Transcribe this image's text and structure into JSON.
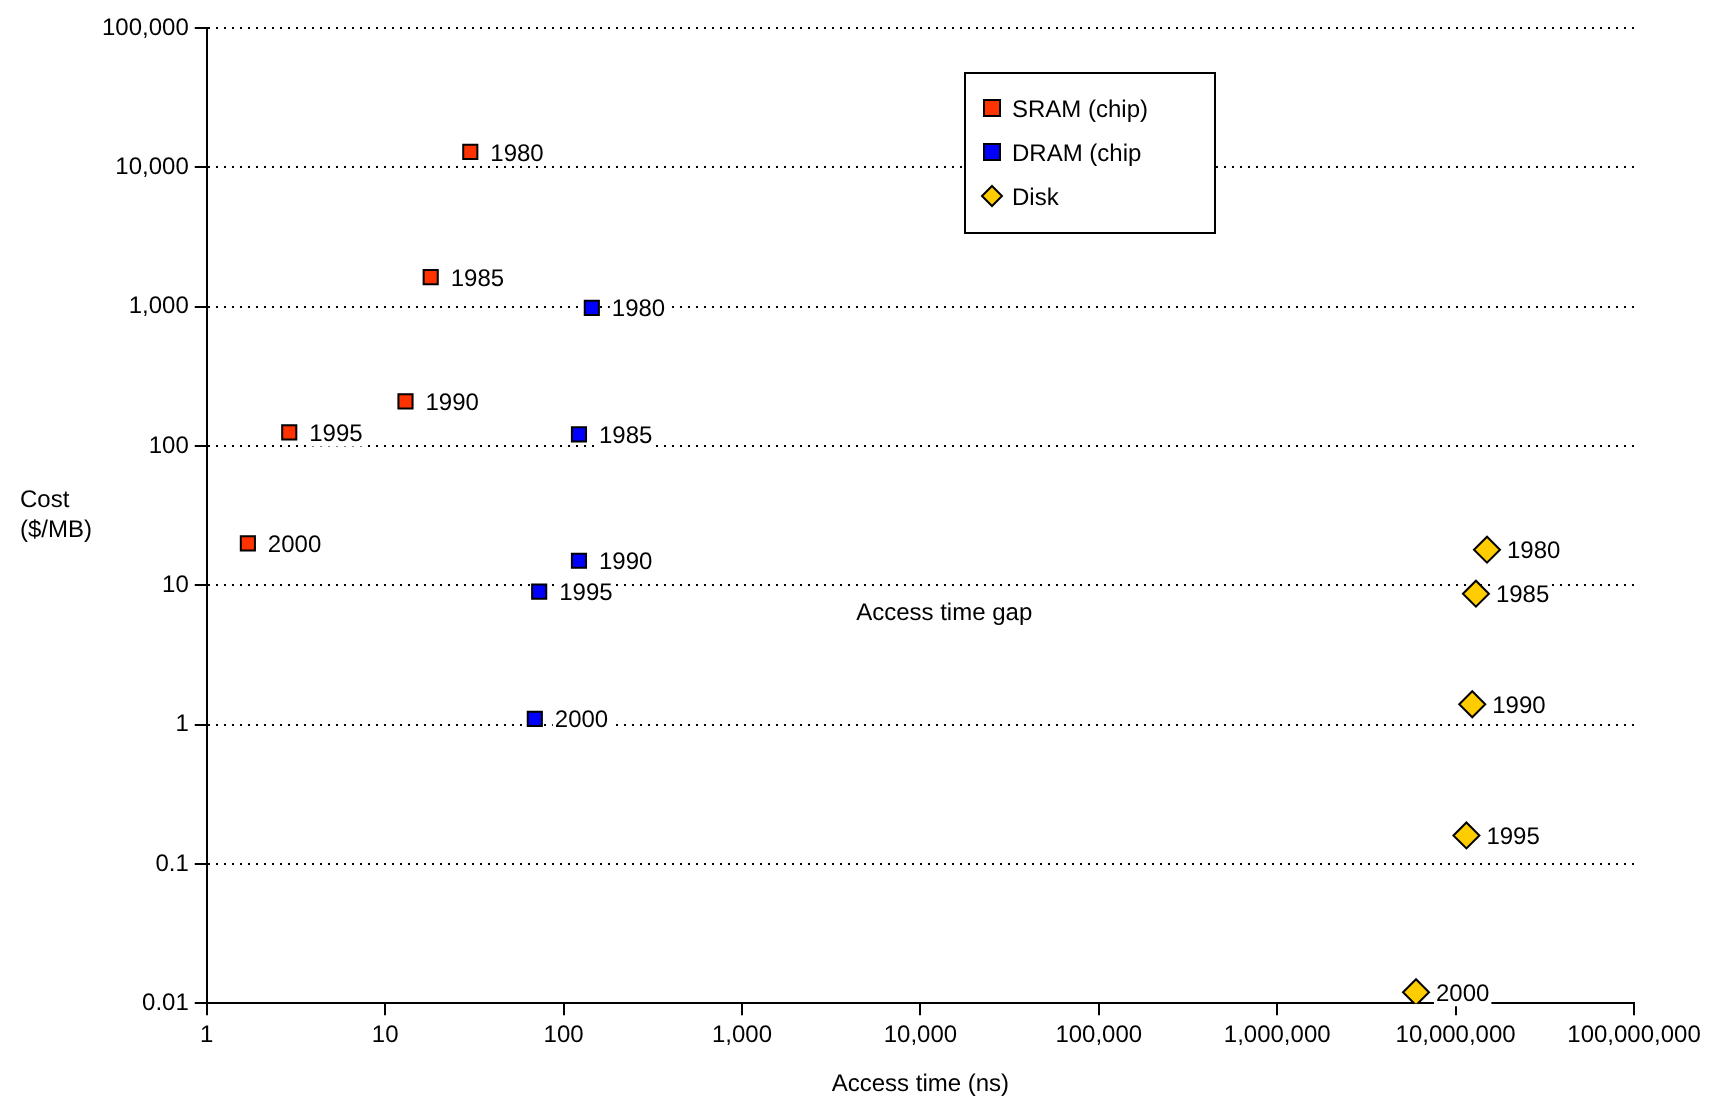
{
  "chart_data": {
    "type": "scatter",
    "xlabel": "Access time (ns)",
    "ylabel": "Cost\n($/MB)",
    "log": "xy",
    "grid": "y",
    "legend": "top right",
    "xlim": [
      1,
      100000000
    ],
    "ylim": [
      0.01,
      100000
    ],
    "xticks": [
      1,
      10,
      100,
      {
        "value": 1000,
        "label": "1,000"
      },
      {
        "value": 10000,
        "label": "10,000"
      },
      {
        "value": 100000,
        "label": "100,000"
      },
      {
        "value": 1000000,
        "label": "1,000,000"
      },
      {
        "value": 10000000,
        "label": "10,000,000"
      },
      {
        "value": 100000000,
        "label": "100,000,000"
      }
    ],
    "yticks": [
      0.01,
      0.1,
      1,
      10,
      100,
      {
        "value": 1000,
        "label": "1,000"
      },
      {
        "value": 10000,
        "label": "10,000"
      },
      {
        "value": 100000,
        "label": "100,000"
      }
    ],
    "series": [
      {
        "name": "SRAM (chip)",
        "color": "#ff3300",
        "marker": "square",
        "x": [
          30,
          18,
          13,
          2.9,
          1.7
        ],
        "values": [
          12900,
          1630,
          209,
          125,
          20
        ]
      },
      {
        "name": "DRAM (chip",
        "color": "#0000ff",
        "marker": "square",
        "x": [
          144,
          122,
          122,
          73,
          69
        ],
        "values": [
          980,
          121,
          15,
          9,
          1.1
        ]
      },
      {
        "name": "Disk",
        "color": "#ffcc00",
        "marker": "diamond",
        "x": [
          15000000,
          13000000,
          12400000,
          11500000,
          6000000
        ],
        "values": [
          18,
          8.7,
          1.4,
          0.16,
          0.012
        ]
      }
    ],
    "annotations": [
      {
        "text": "1980",
        "x": 30,
        "y": 12900
      },
      {
        "text": "1985",
        "x": 18,
        "y": 1630
      },
      {
        "text": "1990",
        "x": 13,
        "y": 209
      },
      {
        "text": "1995",
        "x": 2.9,
        "y": 125
      },
      {
        "text": "2000",
        "x": 1.7,
        "y": 20
      },
      {
        "text": "1980",
        "x": 144,
        "y": 980
      },
      {
        "text": "1985",
        "x": 122,
        "y": 121
      },
      {
        "text": "1990",
        "x": 122,
        "y": 15
      },
      {
        "text": "1995",
        "x": 73,
        "y": 9
      },
      {
        "text": "2000",
        "x": 69,
        "y": 1.1
      },
      {
        "text": "1980",
        "x": 15000000,
        "y": 18
      },
      {
        "text": "1985",
        "x": 13000000,
        "y": 8.7
      },
      {
        "text": "1990",
        "x": 12400000,
        "y": 1.4
      },
      {
        "text": "1995",
        "x": 11500000,
        "y": 0.16
      },
      {
        "text": "2000",
        "x": 6000000,
        "y": 0.012
      },
      "Access time gap"
    ]
  }
}
